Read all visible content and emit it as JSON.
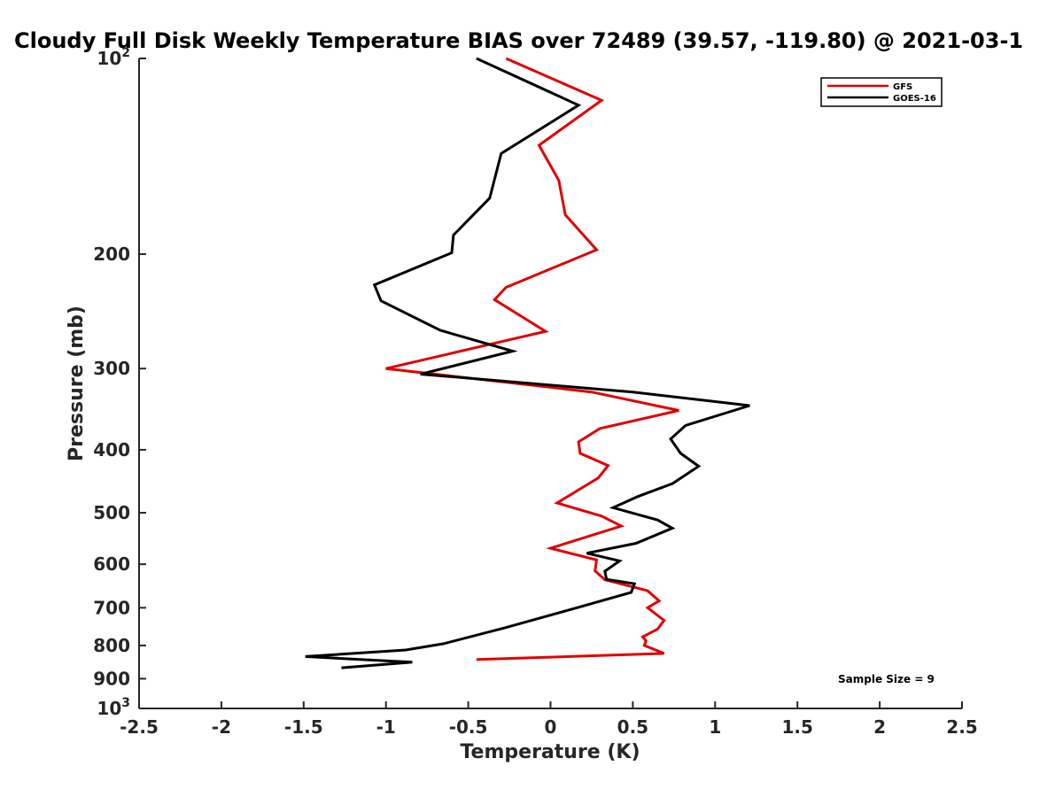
{
  "chart_data": {
    "type": "line",
    "title": "Cloudy Full Disk Weekly Temperature BIAS over 72489 (39.57, -119.80) @ 2021-03-1",
    "xlabel": "Temperature (K)",
    "ylabel": "Pressure (mb)",
    "xlim": [
      -2.5,
      2.5
    ],
    "ylim": [
      1000,
      100
    ],
    "y_scale": "log",
    "x_ticks": [
      "-2.5",
      "-2",
      "-1.5",
      "-1",
      "-0.5",
      "0",
      "0.5",
      "1",
      "1.5",
      "2",
      "2.5"
    ],
    "x_tick_values": [
      -2.5,
      -2,
      -1.5,
      -1,
      -0.5,
      0,
      0.5,
      1,
      1.5,
      2,
      2.5
    ],
    "y_ticks": [
      {
        "value": 100,
        "base": "10",
        "exp": "2"
      },
      {
        "value": 200,
        "label": "200"
      },
      {
        "value": 300,
        "label": "300"
      },
      {
        "value": 400,
        "label": "400"
      },
      {
        "value": 500,
        "label": "500"
      },
      {
        "value": 600,
        "label": "600"
      },
      {
        "value": 700,
        "label": "700"
      },
      {
        "value": 800,
        "label": "800"
      },
      {
        "value": 900,
        "label": "900"
      },
      {
        "value": 1000,
        "base": "10",
        "exp": "3"
      }
    ],
    "grid": false,
    "legend_position": "top-right",
    "annotation": "Sample Size = 9",
    "series": [
      {
        "name": "GFS",
        "color": "#e00000",
        "points": [
          [
            -0.27,
            100
          ],
          [
            0.31,
            116
          ],
          [
            -0.07,
            136
          ],
          [
            0.05,
            154
          ],
          [
            0.09,
            174
          ],
          [
            0.28,
            197
          ],
          [
            -0.27,
            225
          ],
          [
            -0.34,
            235
          ],
          [
            -0.03,
            263
          ],
          [
            -1.0,
            300
          ],
          [
            0.25,
            326
          ],
          [
            0.78,
            348
          ],
          [
            0.3,
            371
          ],
          [
            0.17,
            389
          ],
          [
            0.18,
            405
          ],
          [
            0.35,
            423
          ],
          [
            0.29,
            442
          ],
          [
            0.04,
            483
          ],
          [
            0.31,
            506
          ],
          [
            0.43,
            524
          ],
          [
            0.0,
            567
          ],
          [
            0.28,
            591
          ],
          [
            0.27,
            614
          ],
          [
            0.33,
            634
          ],
          [
            0.59,
            659
          ],
          [
            0.66,
            683
          ],
          [
            0.59,
            700
          ],
          [
            0.69,
            732
          ],
          [
            0.65,
            755
          ],
          [
            0.56,
            776
          ],
          [
            0.58,
            787
          ],
          [
            0.57,
            800
          ],
          [
            0.69,
            823
          ],
          [
            -0.45,
            841
          ]
        ]
      },
      {
        "name": "GOES-16",
        "color": "#000000",
        "points": [
          [
            -0.45,
            100
          ],
          [
            0.17,
            118
          ],
          [
            -0.3,
            140
          ],
          [
            -0.37,
            164
          ],
          [
            -0.59,
            187
          ],
          [
            -0.6,
            199
          ],
          [
            -1.07,
            223
          ],
          [
            -1.03,
            236
          ],
          [
            -0.67,
            262
          ],
          [
            -0.23,
            282
          ],
          [
            -0.79,
            306
          ],
          [
            0.5,
            326
          ],
          [
            1.21,
            342
          ],
          [
            0.82,
            367
          ],
          [
            0.73,
            385
          ],
          [
            0.79,
            405
          ],
          [
            0.9,
            424
          ],
          [
            0.74,
            451
          ],
          [
            0.53,
            472
          ],
          [
            0.38,
            491
          ],
          [
            0.65,
            513
          ],
          [
            0.74,
            528
          ],
          [
            0.52,
            557
          ],
          [
            0.22,
            577
          ],
          [
            0.42,
            593
          ],
          [
            0.33,
            615
          ],
          [
            0.34,
            633
          ],
          [
            0.51,
            643
          ],
          [
            0.49,
            663
          ],
          [
            0.16,
            700
          ],
          [
            -0.28,
            752
          ],
          [
            -0.65,
            795
          ],
          [
            -0.88,
            813
          ],
          [
            -1.49,
            832
          ],
          [
            -0.84,
            849
          ],
          [
            -1.27,
            866
          ]
        ]
      }
    ]
  }
}
